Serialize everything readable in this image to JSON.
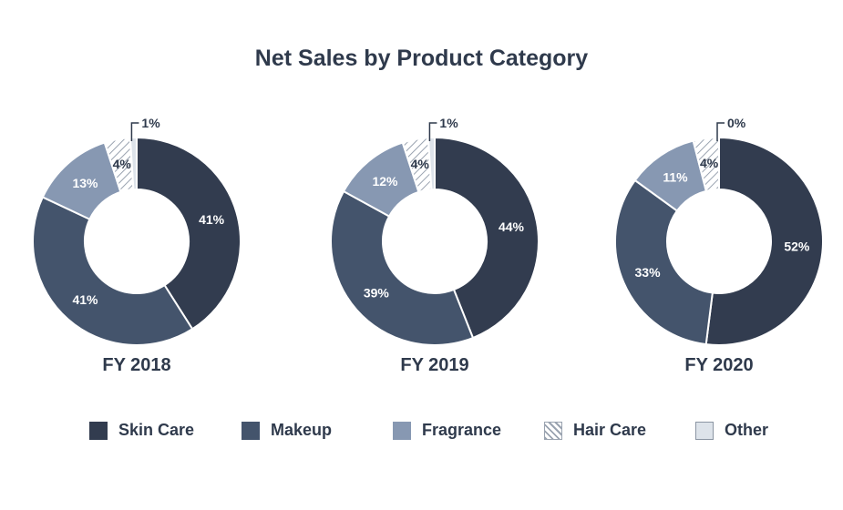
{
  "chart_data": {
    "type": "pie",
    "title": "Net Sales by Product Category",
    "categories": [
      "Skin Care",
      "Makeup",
      "Fragrance",
      "Hair Care",
      "Other"
    ],
    "colors": {
      "Skin Care": "#323c4f",
      "Makeup": "#44546c",
      "Fragrance": "#8798b2",
      "Hair Care": "#ffffff",
      "Hair Care hatch": "#9aa3b0",
      "Other": "#dde3ea",
      "text_dark": "#2f3a4c",
      "text_light": "#ffffff"
    },
    "charts": [
      {
        "label": "FY 2018",
        "values": [
          41,
          41,
          13,
          4,
          1
        ],
        "labels": [
          "41%",
          "41%",
          "13%",
          "4%",
          "1%"
        ]
      },
      {
        "label": "FY 2019",
        "values": [
          44,
          39,
          12,
          4,
          1
        ],
        "labels": [
          "44%",
          "39%",
          "12%",
          "4%",
          "1%"
        ]
      },
      {
        "label": "FY 2020",
        "values": [
          52,
          33,
          11,
          4,
          0
        ],
        "labels": [
          "52%",
          "33%",
          "11%",
          "4%",
          "0%"
        ]
      }
    ],
    "legend": [
      "Skin Care",
      "Makeup",
      "Fragrance",
      "Hair Care",
      "Other"
    ]
  }
}
